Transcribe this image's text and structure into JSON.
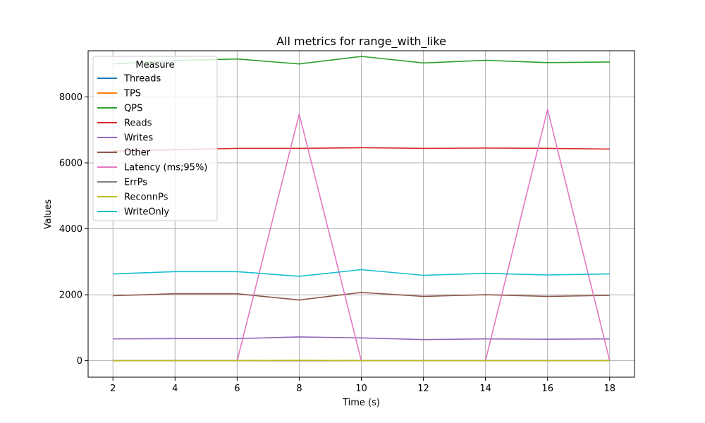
{
  "chart_data": {
    "type": "line",
    "title": "All metrics for range_with_like",
    "xlabel": "Time (s)",
    "ylabel": "Values",
    "xlim": [
      1.2,
      18.8
    ],
    "ylim": [
      -500,
      9400
    ],
    "x_ticks": [
      2,
      4,
      6,
      8,
      10,
      12,
      14,
      16,
      18
    ],
    "y_ticks": [
      0,
      2000,
      4000,
      6000,
      8000
    ],
    "grid": true,
    "legend": {
      "title": "Measure",
      "placement": "top-left"
    },
    "x": [
      2,
      4,
      6,
      8,
      10,
      12,
      14,
      16,
      18
    ],
    "series": [
      {
        "name": "Threads",
        "color": "#1f77b4",
        "values": [
          4,
          4,
          4,
          4,
          4,
          4,
          4,
          4,
          4
        ]
      },
      {
        "name": "TPS",
        "color": "#ff7f0e",
        "values": [
          1,
          1,
          1,
          1,
          1,
          1,
          1,
          1,
          1
        ]
      },
      {
        "name": "QPS",
        "color": "#2ca02c",
        "values": [
          9000,
          9100,
          9150,
          9000,
          9230,
          9030,
          9110,
          9040,
          9060
        ]
      },
      {
        "name": "Reads",
        "color": "#d62728",
        "values": [
          6360,
          6400,
          6440,
          6440,
          6460,
          6440,
          6450,
          6440,
          6420
        ]
      },
      {
        "name": "Writes",
        "color": "#9467bd",
        "values": [
          660,
          670,
          670,
          720,
          690,
          640,
          660,
          650,
          660
        ]
      },
      {
        "name": "Other",
        "color": "#8c564b",
        "values": [
          1970,
          2030,
          2030,
          1840,
          2070,
          1950,
          2000,
          1950,
          1980
        ]
      },
      {
        "name": "Latency (ms;95%)",
        "color": "#e377c2",
        "values": [
          0,
          0,
          0,
          7480,
          0,
          0,
          0,
          7620,
          0
        ]
      },
      {
        "name": "ErrPs",
        "color": "#7f7f7f",
        "values": [
          0,
          0,
          0,
          0,
          0,
          0,
          0,
          0,
          0
        ]
      },
      {
        "name": "ReconnPs",
        "color": "#bcbd22",
        "values": [
          0,
          0,
          0,
          10,
          0,
          0,
          0,
          0,
          0
        ]
      },
      {
        "name": "WriteOnly",
        "color": "#17becf",
        "values": [
          2630,
          2700,
          2700,
          2560,
          2760,
          2590,
          2650,
          2600,
          2630
        ]
      }
    ]
  }
}
